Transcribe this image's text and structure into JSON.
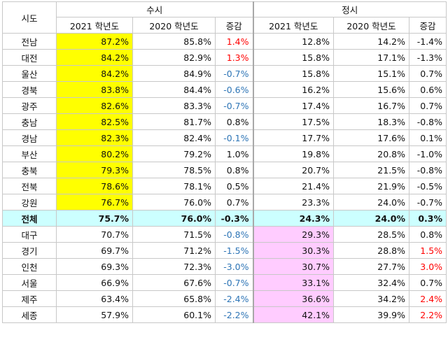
{
  "header": {
    "region": "시도",
    "group_susi": "수시",
    "group_jeongsi": "정시",
    "susi_cols": [
      "2021 학년도",
      "2020 학년도",
      "증감"
    ],
    "jeongsi_cols": [
      "2021 학년도",
      "2020 학년도",
      "증감"
    ]
  },
  "rows": [
    {
      "region": "전남",
      "s21": "87.2%",
      "s20": "85.8%",
      "sd": "1.4%",
      "j21": "12.8%",
      "j20": "14.2%",
      "jd": "-1.4%"
    },
    {
      "region": "대전",
      "s21": "84.2%",
      "s20": "82.9%",
      "sd": "1.3%",
      "j21": "15.8%",
      "j20": "17.1%",
      "jd": "-1.3%"
    },
    {
      "region": "울산",
      "s21": "84.2%",
      "s20": "84.9%",
      "sd": "-0.7%",
      "j21": "15.8%",
      "j20": "15.1%",
      "jd": "0.7%"
    },
    {
      "region": "경북",
      "s21": "83.8%",
      "s20": "84.4%",
      "sd": "-0.6%",
      "j21": "16.2%",
      "j20": "15.6%",
      "jd": "0.6%"
    },
    {
      "region": "광주",
      "s21": "82.6%",
      "s20": "83.3%",
      "sd": "-0.7%",
      "j21": "17.4%",
      "j20": "16.7%",
      "jd": "0.7%"
    },
    {
      "region": "충남",
      "s21": "82.5%",
      "s20": "81.7%",
      "sd": "0.8%",
      "j21": "17.5%",
      "j20": "18.3%",
      "jd": "-0.8%"
    },
    {
      "region": "경남",
      "s21": "82.3%",
      "s20": "82.4%",
      "sd": "-0.1%",
      "j21": "17.7%",
      "j20": "17.6%",
      "jd": "0.1%"
    },
    {
      "region": "부산",
      "s21": "80.2%",
      "s20": "79.2%",
      "sd": "1.0%",
      "j21": "19.8%",
      "j20": "20.8%",
      "jd": "-1.0%"
    },
    {
      "region": "충북",
      "s21": "79.3%",
      "s20": "78.5%",
      "sd": "0.8%",
      "j21": "20.7%",
      "j20": "21.5%",
      "jd": "-0.8%"
    },
    {
      "region": "전북",
      "s21": "78.6%",
      "s20": "78.1%",
      "sd": "0.5%",
      "j21": "21.4%",
      "j20": "21.9%",
      "jd": "-0.5%"
    },
    {
      "region": "강원",
      "s21": "76.7%",
      "s20": "76.0%",
      "sd": "0.7%",
      "j21": "23.3%",
      "j20": "24.0%",
      "jd": "-0.7%"
    },
    {
      "region": "전체",
      "s21": "75.7%",
      "s20": "76.0%",
      "sd": "-0.3%",
      "j21": "24.3%",
      "j20": "24.0%",
      "jd": "0.3%"
    },
    {
      "region": "대구",
      "s21": "70.7%",
      "s20": "71.5%",
      "sd": "-0.8%",
      "j21": "29.3%",
      "j20": "28.5%",
      "jd": "0.8%"
    },
    {
      "region": "경기",
      "s21": "69.7%",
      "s20": "71.2%",
      "sd": "-1.5%",
      "j21": "30.3%",
      "j20": "28.8%",
      "jd": "1.5%"
    },
    {
      "region": "인천",
      "s21": "69.3%",
      "s20": "72.3%",
      "sd": "-3.0%",
      "j21": "30.7%",
      "j20": "27.7%",
      "jd": "3.0%"
    },
    {
      "region": "서울",
      "s21": "66.9%",
      "s20": "67.6%",
      "sd": "-0.7%",
      "j21": "33.1%",
      "j20": "32.4%",
      "jd": "0.7%"
    },
    {
      "region": "제주",
      "s21": "63.4%",
      "s20": "65.8%",
      "sd": "-2.4%",
      "j21": "36.6%",
      "j20": "34.2%",
      "jd": "2.4%"
    },
    {
      "region": "세종",
      "s21": "57.9%",
      "s20": "60.1%",
      "sd": "-2.2%",
      "j21": "42.1%",
      "j20": "39.9%",
      "jd": "2.2%"
    }
  ]
}
